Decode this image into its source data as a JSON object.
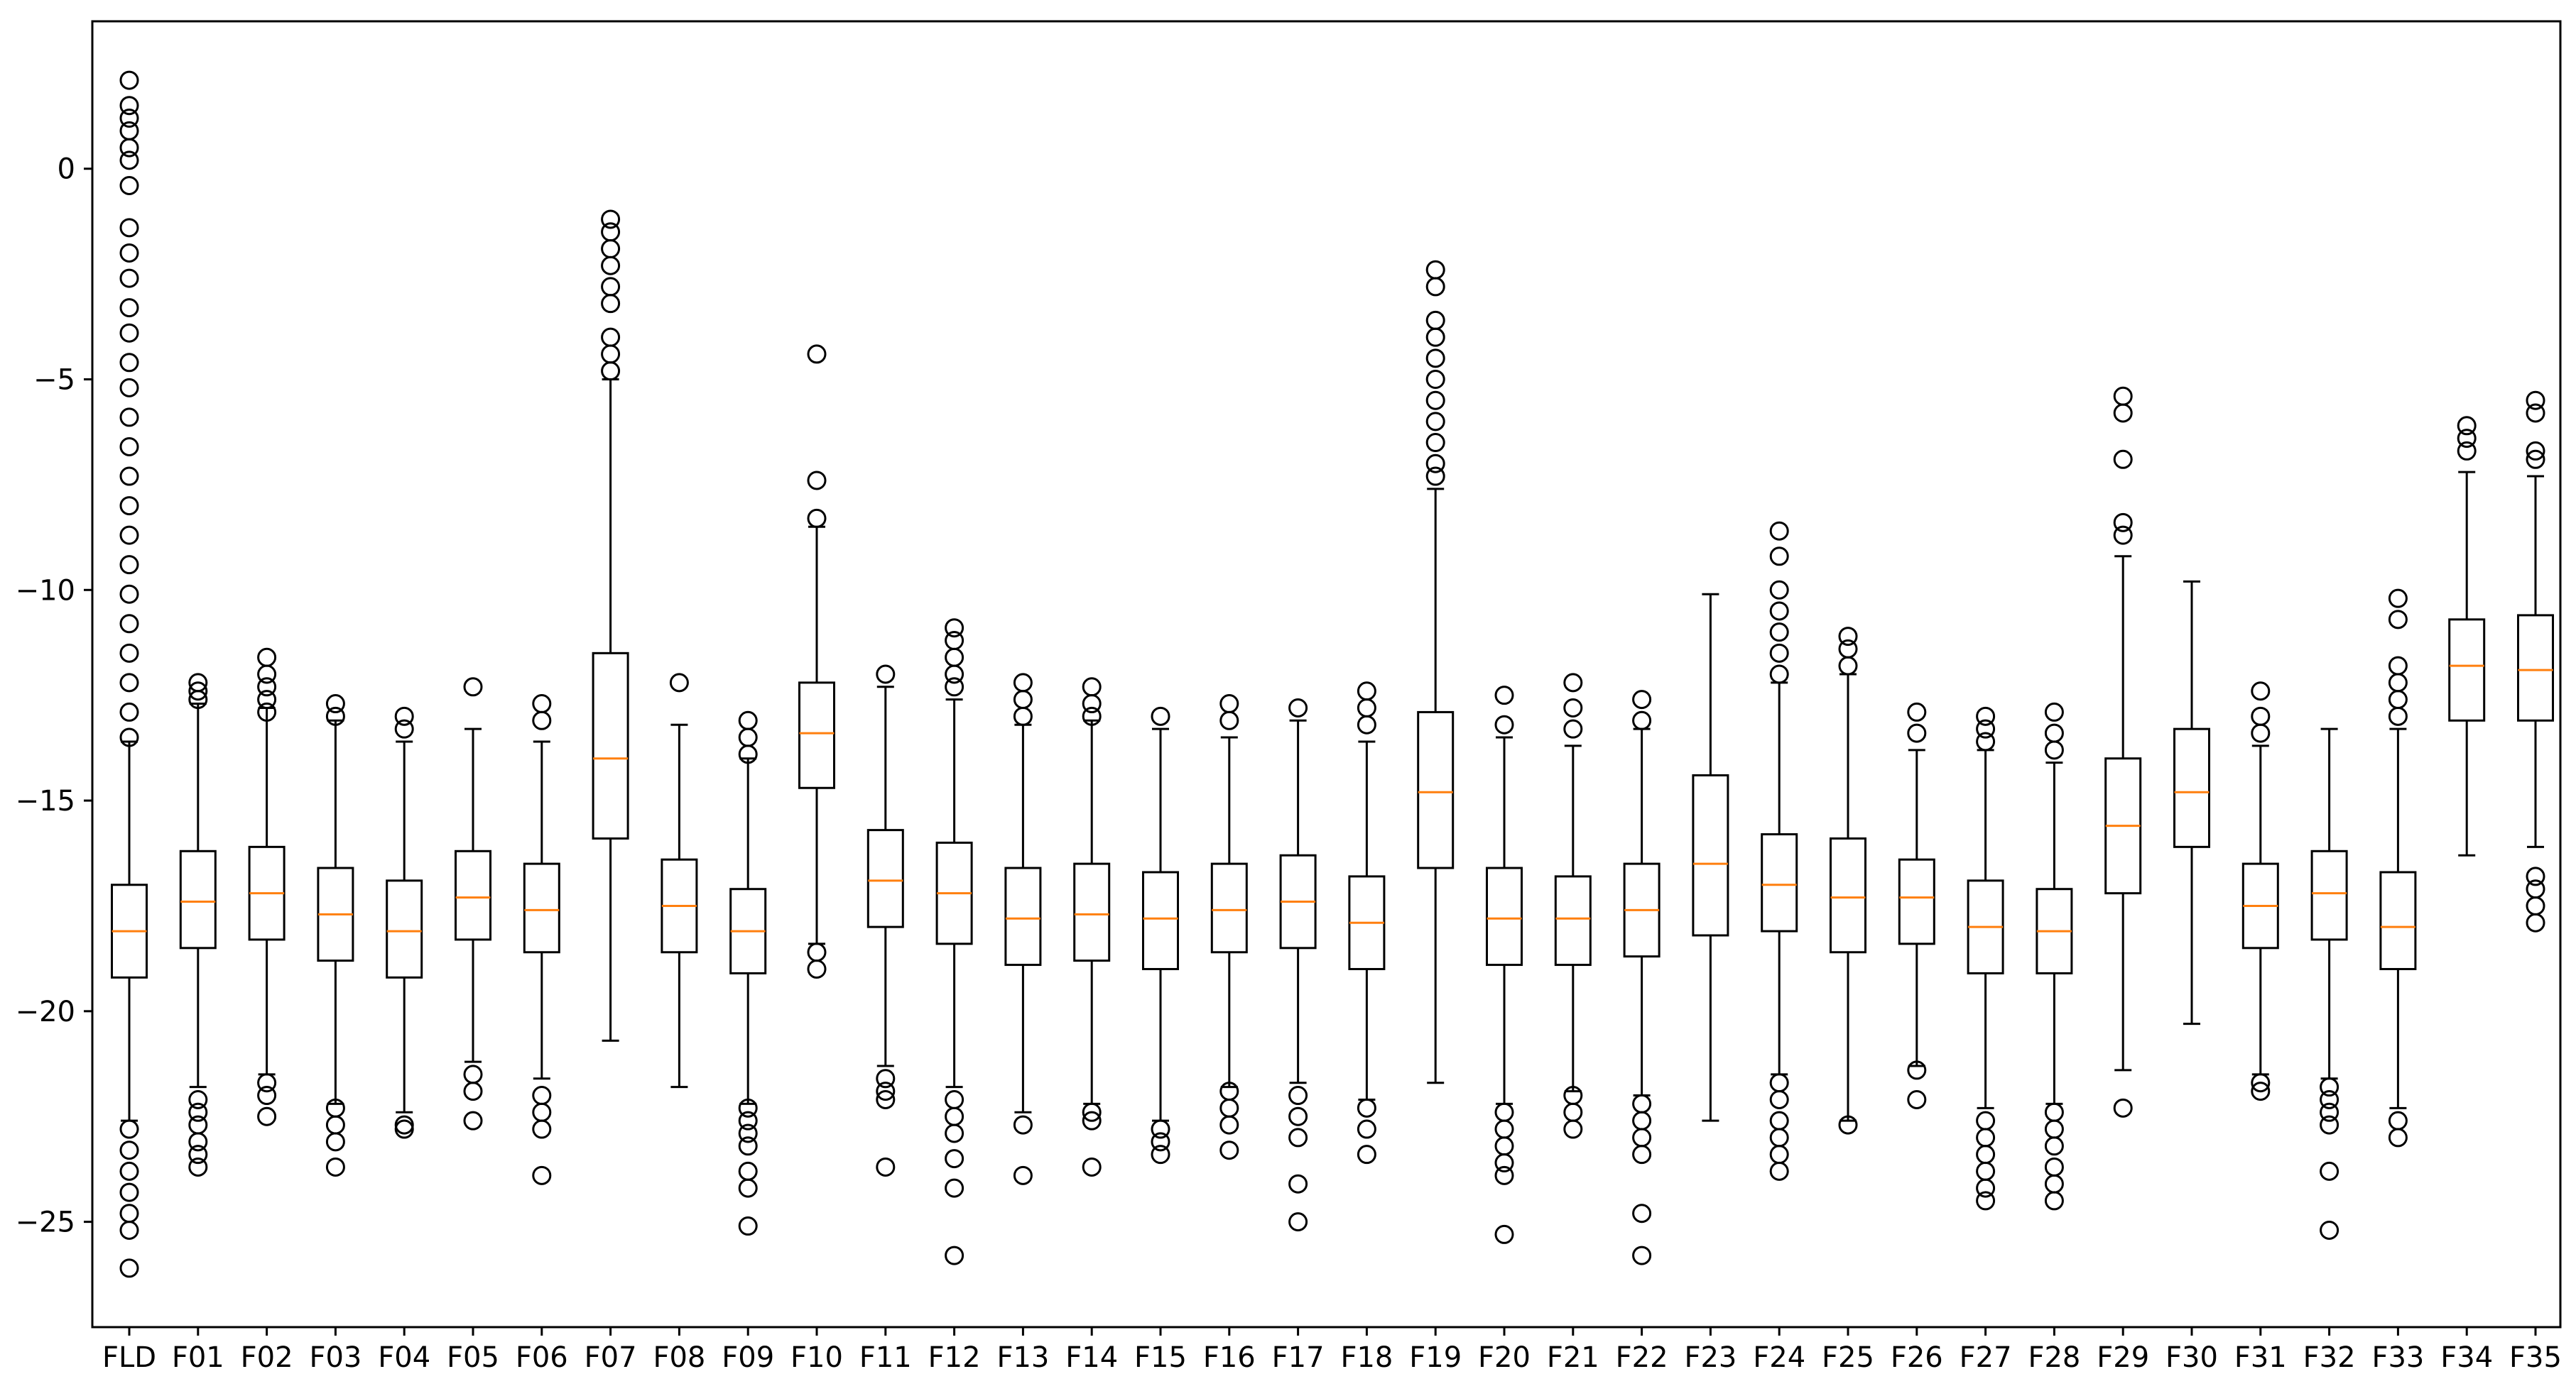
{
  "chart_data": {
    "type": "boxplot",
    "title": "",
    "xlabel": "",
    "ylabel": "",
    "ylim": [
      -27.5,
      3.5
    ],
    "yticks": [
      0,
      -5,
      -10,
      -15,
      -20,
      -25
    ],
    "grid": false,
    "colors": {
      "box": "#000000",
      "median": "#ff7f0e",
      "flier": "#000000",
      "background": "#ffffff"
    },
    "categories": [
      "FLD",
      "F01",
      "F02",
      "F03",
      "F04",
      "F05",
      "F06",
      "F07",
      "F08",
      "F09",
      "F10",
      "F11",
      "F12",
      "F13",
      "F14",
      "F15",
      "F16",
      "F17",
      "F18",
      "F19",
      "F20",
      "F21",
      "F22",
      "F23",
      "F24",
      "F25",
      "F26",
      "F27",
      "F28",
      "F29",
      "F30",
      "F31",
      "F32",
      "F33",
      "F34",
      "F35"
    ],
    "boxes": [
      {
        "label": "FLD",
        "whislo": -22.6,
        "q1": -19.2,
        "med": -18.1,
        "q3": -17.0,
        "whishi": -13.6,
        "fliers": [
          2.1,
          1.5,
          1.2,
          0.9,
          0.5,
          0.2,
          -0.4,
          -1.4,
          -2.0,
          -2.6,
          -3.3,
          -3.9,
          -4.6,
          -5.2,
          -5.9,
          -6.6,
          -7.3,
          -8.0,
          -8.7,
          -9.4,
          -10.1,
          -10.8,
          -11.5,
          -12.2,
          -12.9,
          -13.5,
          -22.8,
          -23.3,
          -23.8,
          -24.3,
          -24.8,
          -25.2,
          -26.1
        ]
      },
      {
        "label": "F01",
        "whislo": -21.8,
        "q1": -18.5,
        "med": -17.4,
        "q3": -16.2,
        "whishi": -12.7,
        "fliers": [
          -12.2,
          -12.4,
          -12.6,
          -22.1,
          -22.4,
          -22.7,
          -23.1,
          -23.4,
          -23.7
        ]
      },
      {
        "label": "F02",
        "whislo": -21.5,
        "q1": -18.3,
        "med": -17.2,
        "q3": -16.1,
        "whishi": -12.8,
        "fliers": [
          -11.6,
          -12.0,
          -12.3,
          -12.6,
          -12.9,
          -21.7,
          -22.0,
          -22.5
        ]
      },
      {
        "label": "F03",
        "whislo": -22.2,
        "q1": -18.8,
        "med": -17.7,
        "q3": -16.6,
        "whishi": -13.1,
        "fliers": [
          -12.7,
          -13.0,
          -22.3,
          -22.7,
          -23.1,
          -23.7
        ]
      },
      {
        "label": "F04",
        "whislo": -22.4,
        "q1": -19.2,
        "med": -18.1,
        "q3": -16.9,
        "whishi": -13.6,
        "fliers": [
          -13.0,
          -13.3,
          -22.7,
          -22.8
        ]
      },
      {
        "label": "F05",
        "whislo": -21.2,
        "q1": -18.3,
        "med": -17.3,
        "q3": -16.2,
        "whishi": -13.3,
        "fliers": [
          -12.3,
          -21.5,
          -21.9,
          -22.6
        ]
      },
      {
        "label": "F06",
        "whislo": -21.6,
        "q1": -18.6,
        "med": -17.6,
        "q3": -16.5,
        "whishi": -13.6,
        "fliers": [
          -12.7,
          -13.1,
          -22.0,
          -22.4,
          -22.8,
          -23.9
        ]
      },
      {
        "label": "F07",
        "whislo": -20.7,
        "q1": -15.9,
        "med": -14.0,
        "q3": -11.5,
        "whishi": -5.0,
        "fliers": [
          -1.2,
          -1.5,
          -1.9,
          -2.3,
          -2.8,
          -3.2,
          -4.0,
          -4.4,
          -4.8
        ]
      },
      {
        "label": "F08",
        "whislo": -21.8,
        "q1": -18.6,
        "med": -17.5,
        "q3": -16.4,
        "whishi": -13.2,
        "fliers": [
          -12.2
        ]
      },
      {
        "label": "F09",
        "whislo": -22.2,
        "q1": -19.1,
        "med": -18.1,
        "q3": -17.1,
        "whishi": -14.0,
        "fliers": [
          -13.1,
          -13.5,
          -13.9,
          -22.3,
          -22.6,
          -22.9,
          -23.2,
          -23.8,
          -24.2,
          -25.1
        ]
      },
      {
        "label": "F10",
        "whislo": -18.4,
        "q1": -14.7,
        "med": -13.4,
        "q3": -12.2,
        "whishi": -8.5,
        "fliers": [
          -4.4,
          -7.4,
          -8.3,
          -18.6,
          -19.0
        ]
      },
      {
        "label": "F11",
        "whislo": -21.3,
        "q1": -18.0,
        "med": -16.9,
        "q3": -15.7,
        "whishi": -12.3,
        "fliers": [
          -12.0,
          -21.6,
          -21.9,
          -22.1,
          -23.7
        ]
      },
      {
        "label": "F12",
        "whislo": -21.8,
        "q1": -18.4,
        "med": -17.2,
        "q3": -16.0,
        "whishi": -12.6,
        "fliers": [
          -10.9,
          -11.2,
          -11.6,
          -12.0,
          -12.3,
          -22.1,
          -22.5,
          -22.9,
          -23.5,
          -24.2,
          -25.8
        ]
      },
      {
        "label": "F13",
        "whislo": -22.4,
        "q1": -18.9,
        "med": -17.8,
        "q3": -16.6,
        "whishi": -13.2,
        "fliers": [
          -12.2,
          -12.6,
          -13.0,
          -22.7,
          -23.9
        ]
      },
      {
        "label": "F14",
        "whislo": -22.2,
        "q1": -18.8,
        "med": -17.7,
        "q3": -16.5,
        "whishi": -13.1,
        "fliers": [
          -12.3,
          -12.7,
          -13.0,
          -22.4,
          -22.6,
          -23.7
        ]
      },
      {
        "label": "F15",
        "whislo": -22.6,
        "q1": -19.0,
        "med": -17.8,
        "q3": -16.7,
        "whishi": -13.3,
        "fliers": [
          -13.0,
          -22.8,
          -23.1,
          -23.4
        ]
      },
      {
        "label": "F16",
        "whislo": -21.8,
        "q1": -18.6,
        "med": -17.6,
        "q3": -16.5,
        "whishi": -13.5,
        "fliers": [
          -12.7,
          -13.1,
          -21.9,
          -22.3,
          -22.7,
          -23.3
        ]
      },
      {
        "label": "F17",
        "whislo": -21.7,
        "q1": -18.5,
        "med": -17.4,
        "q3": -16.3,
        "whishi": -13.1,
        "fliers": [
          -12.8,
          -22.0,
          -22.5,
          -23.0,
          -24.1,
          -25.0
        ]
      },
      {
        "label": "F18",
        "whislo": -22.1,
        "q1": -19.0,
        "med": -17.9,
        "q3": -16.8,
        "whishi": -13.6,
        "fliers": [
          -12.4,
          -12.8,
          -13.2,
          -22.3,
          -22.8,
          -23.4
        ]
      },
      {
        "label": "F19",
        "whislo": -21.7,
        "q1": -16.6,
        "med": -14.8,
        "q3": -12.9,
        "whishi": -7.6,
        "fliers": [
          -2.4,
          -2.8,
          -3.6,
          -4.0,
          -4.5,
          -5.0,
          -5.5,
          -6.0,
          -6.5,
          -7.0,
          -7.3
        ]
      },
      {
        "label": "F20",
        "whislo": -22.2,
        "q1": -18.9,
        "med": -17.8,
        "q3": -16.6,
        "whishi": -13.5,
        "fliers": [
          -12.5,
          -13.2,
          -22.4,
          -22.8,
          -23.2,
          -23.6,
          -23.9,
          -25.3
        ]
      },
      {
        "label": "F21",
        "whislo": -21.9,
        "q1": -18.9,
        "med": -17.8,
        "q3": -16.8,
        "whishi": -13.7,
        "fliers": [
          -12.2,
          -12.8,
          -13.3,
          -22.0,
          -22.4,
          -22.8
        ]
      },
      {
        "label": "F22",
        "whislo": -22.0,
        "q1": -18.7,
        "med": -17.6,
        "q3": -16.5,
        "whishi": -13.3,
        "fliers": [
          -12.6,
          -13.1,
          -22.2,
          -22.6,
          -23.0,
          -23.4,
          -24.8,
          -25.8
        ]
      },
      {
        "label": "F23",
        "whislo": -22.6,
        "q1": -18.2,
        "med": -16.5,
        "q3": -14.4,
        "whishi": -10.1,
        "fliers": []
      },
      {
        "label": "F24",
        "whislo": -21.5,
        "q1": -18.1,
        "med": -17.0,
        "q3": -15.8,
        "whishi": -12.2,
        "fliers": [
          -8.6,
          -9.2,
          -10.0,
          -10.5,
          -11.0,
          -11.5,
          -12.0,
          -21.7,
          -22.1,
          -22.6,
          -23.0,
          -23.4,
          -23.8
        ]
      },
      {
        "label": "F25",
        "whislo": -22.6,
        "q1": -18.6,
        "med": -17.3,
        "q3": -15.9,
        "whishi": -12.0,
        "fliers": [
          -11.1,
          -11.4,
          -11.8,
          -22.7
        ]
      },
      {
        "label": "F26",
        "whislo": -21.3,
        "q1": -18.4,
        "med": -17.3,
        "q3": -16.4,
        "whishi": -13.8,
        "fliers": [
          -12.9,
          -13.4,
          -21.4,
          -22.1
        ]
      },
      {
        "label": "F27",
        "whislo": -22.3,
        "q1": -19.1,
        "med": -18.0,
        "q3": -16.9,
        "whishi": -13.8,
        "fliers": [
          -13.0,
          -13.3,
          -13.6,
          -22.6,
          -23.0,
          -23.4,
          -23.8,
          -24.2,
          -24.5
        ]
      },
      {
        "label": "F28",
        "whislo": -22.2,
        "q1": -19.1,
        "med": -18.1,
        "q3": -17.1,
        "whishi": -14.1,
        "fliers": [
          -12.9,
          -13.4,
          -13.8,
          -22.4,
          -22.8,
          -23.2,
          -23.7,
          -24.1,
          -24.5
        ]
      },
      {
        "label": "F29",
        "whislo": -21.4,
        "q1": -17.2,
        "med": -15.6,
        "q3": -14.0,
        "whishi": -9.2,
        "fliers": [
          -5.4,
          -5.8,
          -6.9,
          -8.4,
          -8.7,
          -22.3
        ]
      },
      {
        "label": "F30",
        "whislo": -20.3,
        "q1": -16.1,
        "med": -14.8,
        "q3": -13.3,
        "whishi": -9.8,
        "fliers": []
      },
      {
        "label": "F31",
        "whislo": -21.5,
        "q1": -18.5,
        "med": -17.5,
        "q3": -16.5,
        "whishi": -13.7,
        "fliers": [
          -12.4,
          -13.0,
          -13.4,
          -21.7,
          -21.9
        ]
      },
      {
        "label": "F32",
        "whislo": -21.6,
        "q1": -18.3,
        "med": -17.2,
        "q3": -16.2,
        "whishi": -13.3,
        "fliers": [
          -21.8,
          -22.1,
          -22.4,
          -22.7,
          -23.8,
          -25.2
        ]
      },
      {
        "label": "F33",
        "whislo": -22.3,
        "q1": -19.0,
        "med": -18.0,
        "q3": -16.7,
        "whishi": -13.3,
        "fliers": [
          -10.2,
          -10.7,
          -11.8,
          -12.2,
          -12.6,
          -13.0,
          -22.6,
          -23.0
        ]
      },
      {
        "label": "F34",
        "whislo": -16.3,
        "q1": -13.1,
        "med": -11.8,
        "q3": -10.7,
        "whishi": -7.2,
        "fliers": [
          -6.1,
          -6.4,
          -6.7
        ]
      },
      {
        "label": "F35",
        "whislo": -16.1,
        "q1": -13.1,
        "med": -11.9,
        "q3": -10.6,
        "whishi": -7.3,
        "fliers": [
          -5.5,
          -5.8,
          -6.7,
          -6.9,
          -16.8,
          -17.1,
          -17.5,
          -17.9
        ]
      }
    ]
  }
}
